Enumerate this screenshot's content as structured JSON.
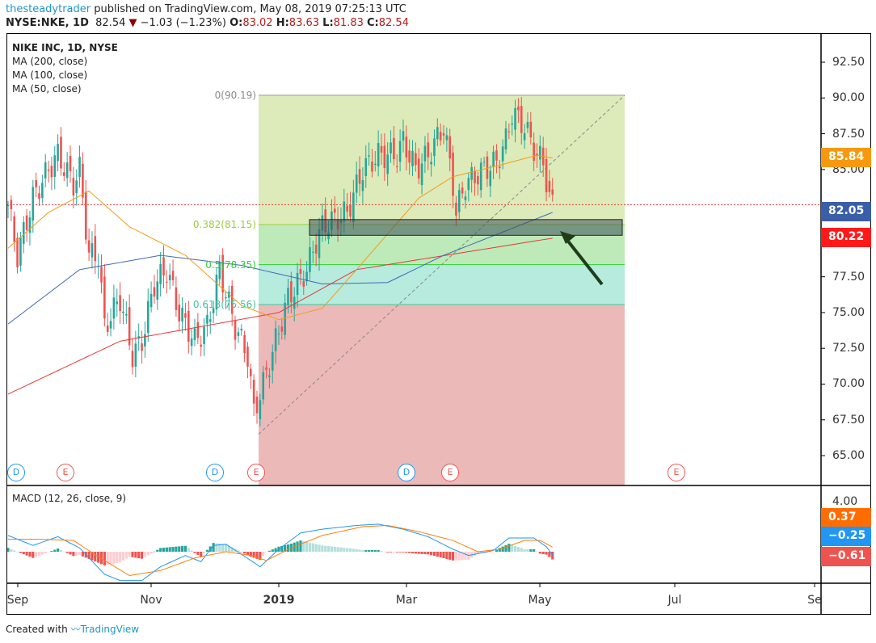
{
  "header": {
    "author": "thesteadytrader",
    "published": "published on TradingView.com, May 08, 2019 07:25:13 UTC",
    "symbol": "NYSE:NKE, 1D",
    "last": "82.54",
    "change": "−1.03 (−1.23%)",
    "o_label": "O:",
    "o": "83.02",
    "h_label": "H:",
    "h": "83.63",
    "l_label": "L:",
    "l": "81.83",
    "c_label": "C:",
    "c": "82.54"
  },
  "legend": [
    "NIKE INC, 1D, NYSE",
    "MA (200, close)",
    "MA (100, close)",
    "MA (50, close)"
  ],
  "macd_legend": "MACD (12, 26, close, 9)",
  "footer": {
    "created": "Created with",
    "brand": "TradingView"
  },
  "colors": {
    "up": "#26a69a",
    "down": "#ef5350",
    "ma200": "#e53935",
    "ma100": "#3f6bb5",
    "ma50": "#f39c1a",
    "macd": "#2196f3",
    "signal": "#ff7f0e"
  },
  "chart_data": {
    "type": "candlestick",
    "price_ticks": [
      "92.50",
      "90.00",
      "87.50",
      "85.00",
      "77.50",
      "75.00",
      "72.50",
      "70.00",
      "67.50",
      "65.00"
    ],
    "price_tags": [
      {
        "label": "85.84",
        "value": 85.84,
        "color": "#f7990f"
      },
      {
        "label": "82.05",
        "value": 82.05,
        "color": "#3a5ea8"
      },
      {
        "label": "80.22",
        "value": 80.22,
        "color": "#ff1a1a"
      }
    ],
    "macd_ticks": [
      "4.00"
    ],
    "macd_tags": [
      {
        "label": "0.37",
        "color": "#ff6d00"
      },
      {
        "label": "−0.25",
        "color": "#2196f3"
      },
      {
        "label": "−0.61",
        "color": "#ef5350"
      }
    ],
    "time_labels": [
      "Sep",
      "Nov",
      "2019",
      "Mar",
      "May",
      "Jul",
      "Se"
    ],
    "last_price": 82.54,
    "close_keypoints": [
      [
        0,
        82.5
      ],
      [
        3,
        79
      ],
      [
        8,
        83
      ],
      [
        13,
        85
      ],
      [
        16,
        86
      ],
      [
        21,
        84
      ],
      [
        23,
        85
      ],
      [
        26,
        79
      ],
      [
        29,
        79
      ],
      [
        31,
        74
      ],
      [
        36,
        76
      ],
      [
        40,
        72
      ],
      [
        43,
        73
      ],
      [
        47,
        77
      ],
      [
        51,
        78
      ],
      [
        55,
        75
      ],
      [
        60,
        73
      ],
      [
        64,
        74
      ],
      [
        68,
        78
      ],
      [
        73,
        74
      ],
      [
        77,
        72
      ],
      [
        79,
        68
      ],
      [
        82,
        70
      ],
      [
        86,
        73
      ],
      [
        90,
        76
      ],
      [
        96,
        78
      ],
      [
        99,
        80
      ],
      [
        101,
        81
      ],
      [
        109,
        82
      ],
      [
        114,
        85
      ],
      [
        119,
        86
      ],
      [
        125,
        86
      ],
      [
        127,
        87
      ],
      [
        131,
        85
      ],
      [
        135,
        86
      ],
      [
        140,
        88
      ],
      [
        143,
        84
      ],
      [
        144,
        82
      ],
      [
        147,
        84
      ],
      [
        153,
        85
      ],
      [
        157,
        85.5
      ],
      [
        160,
        87
      ],
      [
        162,
        89
      ],
      [
        166,
        88
      ],
      [
        170,
        86
      ],
      [
        172,
        85.5
      ],
      [
        174,
        83
      ],
      [
        175,
        82.5
      ]
    ],
    "ma200": [
      [
        0,
        69.3
      ],
      [
        36,
        73
      ],
      [
        87,
        75
      ],
      [
        112,
        78
      ],
      [
        175,
        80.2
      ]
    ],
    "ma100": [
      [
        0,
        74.2
      ],
      [
        23,
        78
      ],
      [
        49,
        79
      ],
      [
        75,
        78.3
      ],
      [
        101,
        77
      ],
      [
        122,
        77.1
      ],
      [
        140,
        79
      ],
      [
        175,
        82
      ]
    ],
    "ma50": [
      [
        0,
        79.5
      ],
      [
        13,
        82
      ],
      [
        26,
        83.5
      ],
      [
        39,
        81
      ],
      [
        57,
        79
      ],
      [
        75,
        75.5
      ],
      [
        87,
        74.5
      ],
      [
        101,
        75.3
      ],
      [
        112,
        78
      ],
      [
        132,
        83
      ],
      [
        143,
        84.5
      ],
      [
        158,
        85.3
      ],
      [
        170,
        86
      ],
      [
        175,
        85.8
      ]
    ],
    "fib": {
      "levels": [
        {
          "ratio": "0",
          "price": 90.19,
          "label": "0(90.19)"
        },
        {
          "ratio": "0.382",
          "price": 81.15,
          "label": "0.382(81.15)"
        },
        {
          "ratio": "0.5",
          "price": 78.35,
          "label": "0.5(78.35)"
        },
        {
          "ratio": "0.618",
          "price": 75.56,
          "label": "0.618(75.56)"
        }
      ],
      "start_price": 66.5
    },
    "zone": {
      "top": 81.5,
      "bottom": 80.4
    },
    "events": [
      {
        "type": "D",
        "color": "#2196f3"
      },
      {
        "type": "E",
        "color": "#ef5350"
      },
      {
        "type": "D",
        "color": "#2196f3"
      },
      {
        "type": "E",
        "color": "#ef5350"
      },
      {
        "type": "D",
        "color": "#2196f3"
      },
      {
        "type": "E",
        "color": "#ef5350"
      },
      {
        "type": "E",
        "color": "#ef5350"
      }
    ],
    "macd_line": [
      [
        0,
        1.3
      ],
      [
        8,
        0.5
      ],
      [
        16,
        1.2
      ],
      [
        23,
        0.3
      ],
      [
        31,
        -1.8
      ],
      [
        36,
        -2.3
      ],
      [
        43,
        -2.3
      ],
      [
        49,
        -1.2
      ],
      [
        57,
        -0.3
      ],
      [
        62,
        -0.8
      ],
      [
        66,
        0.5
      ],
      [
        70,
        0.6
      ],
      [
        75,
        -0.2
      ],
      [
        81,
        -1.2
      ],
      [
        87,
        0.2
      ],
      [
        94,
        1.5
      ],
      [
        101,
        1.8
      ],
      [
        112,
        2.1
      ],
      [
        119,
        2.2
      ],
      [
        127,
        1.8
      ],
      [
        135,
        1.2
      ],
      [
        143,
        0.2
      ],
      [
        148,
        -0.3
      ],
      [
        156,
        0.1
      ],
      [
        161,
        1.1
      ],
      [
        169,
        1.1
      ],
      [
        173,
        0.4
      ],
      [
        175,
        -0.25
      ]
    ],
    "signal_line": [
      [
        0,
        1.0
      ],
      [
        10,
        1.0
      ],
      [
        21,
        0.9
      ],
      [
        29,
        -0.4
      ],
      [
        39,
        -1.9
      ],
      [
        49,
        -1.5
      ],
      [
        60,
        -0.5
      ],
      [
        70,
        0.0
      ],
      [
        78,
        -0.3
      ],
      [
        83,
        -0.7
      ],
      [
        91,
        0.3
      ],
      [
        101,
        1.3
      ],
      [
        114,
        2.0
      ],
      [
        122,
        2.1
      ],
      [
        132,
        1.6
      ],
      [
        143,
        0.9
      ],
      [
        151,
        0.0
      ],
      [
        158,
        0.2
      ],
      [
        166,
        0.9
      ],
      [
        171,
        0.9
      ],
      [
        175,
        0.37
      ]
    ]
  }
}
